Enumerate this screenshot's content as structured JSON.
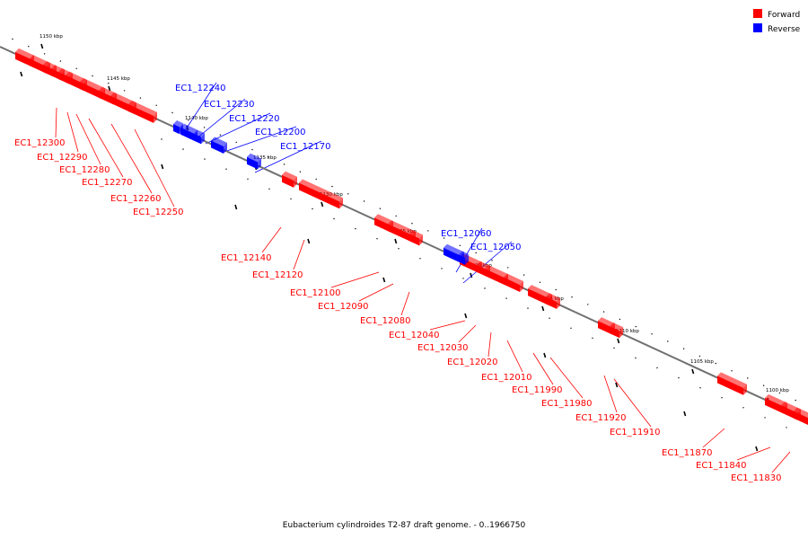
{
  "legend": {
    "forward_label": "Forward",
    "reverse_label": "Reverse",
    "forward_color": "#ff0000",
    "reverse_color": "#0000ff"
  },
  "colors": {
    "backbone": "#707070",
    "tick": "#000000",
    "leader_forward": "#ff0000",
    "leader_reverse": "#0000ff"
  },
  "caption": "Eubacterium cylindroides T2-87 draft genome. - 0..1966750",
  "scale_ticks": [
    "1150 kbp",
    "1145 kbp",
    "1140 kbp",
    "1135 kbp",
    "1130 kbp",
    "1125 kbp",
    "1120 kbp",
    "1115 kbp",
    "1110 kbp",
    "1105 kbp",
    "1100 kbp"
  ],
  "forward_genes": [
    "EC1_12300",
    "EC1_12290",
    "EC1_12280",
    "EC1_12270",
    "EC1_12260",
    "EC1_12250",
    "EC1_12140",
    "EC1_12120",
    "EC1_12100",
    "EC1_12090",
    "EC1_12080",
    "EC1_12040",
    "EC1_12030",
    "EC1_12020",
    "EC1_12010",
    "EC1_11990",
    "EC1_11980",
    "EC1_11920",
    "EC1_11910",
    "EC1_11870",
    "EC1_11840",
    "EC1_11830"
  ],
  "reverse_genes": [
    "EC1_12240",
    "EC1_12230",
    "EC1_12220",
    "EC1_12200",
    "EC1_12170",
    "EC1_12060",
    "EC1_12050"
  ]
}
